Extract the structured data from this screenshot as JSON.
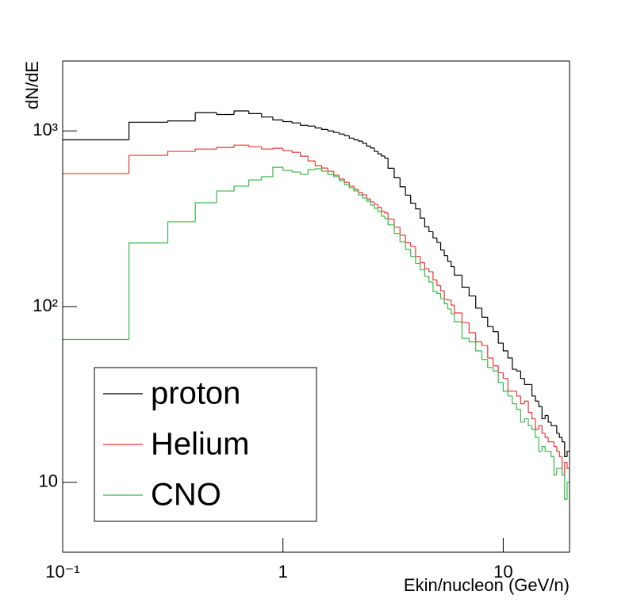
{
  "chart_data": {
    "type": "histogram",
    "xlabel": "Ekin/nucleon (GeV/n)",
    "ylabel": "dN/dE",
    "log_x": true,
    "log_y": true,
    "xlim": [
      0.1,
      20
    ],
    "ylim": [
      4,
      2500
    ],
    "xticks": [
      {
        "value": 0.1,
        "label": "10⁻¹"
      },
      1,
      10
    ],
    "yticks": [
      10,
      {
        "value": 100,
        "label": "10²"
      },
      {
        "value": 1000,
        "label": "10³"
      }
    ],
    "legend_position": "bottom left",
    "bins": [
      0.1,
      0.2,
      0.3,
      0.4,
      0.5,
      0.6,
      0.7,
      0.8,
      0.9,
      1.0,
      1.1,
      1.2,
      1.3,
      1.4,
      1.5,
      1.6,
      1.7,
      1.8,
      1.9,
      2.0,
      2.1,
      2.2,
      2.3,
      2.4,
      2.5,
      2.6,
      2.7,
      2.8,
      2.9,
      3.0,
      3.2,
      3.4,
      3.6,
      3.8,
      4.0,
      4.2,
      4.4,
      4.6,
      4.8,
      5.0,
      5.2,
      5.4,
      5.6,
      5.8,
      6.0,
      6.5,
      7.0,
      7.5,
      8.0,
      8.5,
      9.0,
      9.5,
      10.0,
      10.5,
      11.0,
      11.5,
      12.0,
      12.5,
      13.0,
      13.5,
      14.0,
      14.5,
      15.0,
      15.5,
      16.0,
      16.5,
      17.0,
      17.5,
      18.0,
      18.5,
      19.0,
      19.5,
      20.0
    ],
    "series": [
      {
        "name": "proton",
        "color": "#000000",
        "values": [
          890,
          1120,
          1140,
          1270,
          1240,
          1300,
          1255,
          1200,
          1155,
          1130,
          1110,
          1075,
          1065,
          1040,
          1020,
          1000,
          980,
          960,
          940,
          910,
          890,
          875,
          850,
          820,
          800,
          765,
          740,
          720,
          700,
          613,
          541,
          481,
          431,
          388,
          360,
          319,
          285,
          267,
          246,
          232,
          210,
          195,
          181,
          169,
          151,
          129,
          115,
          98,
          87,
          77,
          72,
          62,
          56,
          51,
          44,
          43,
          39,
          36,
          36,
          31,
          29,
          27,
          23,
          24,
          22,
          21,
          21,
          19,
          18,
          17,
          14,
          15
        ]
      },
      {
        "name": "Helium",
        "color": "#ee3333",
        "values": [
          572,
          726,
          765,
          788,
          805,
          830,
          813,
          788,
          797,
          772,
          756,
          718,
          675,
          634,
          615,
          590,
          560,
          532,
          510,
          485,
          465,
          446,
          432,
          410,
          394,
          382,
          367,
          348,
          341,
          315,
          283,
          255,
          231,
          220,
          193,
          178,
          164,
          158,
          142,
          132,
          123,
          110,
          109,
          102,
          92,
          81,
          71,
          63,
          60,
          51,
          46,
          42,
          39,
          33,
          33,
          31,
          28,
          29,
          25,
          23,
          20,
          21,
          19,
          18,
          17,
          17,
          16,
          15,
          14,
          11,
          13,
          12
        ]
      },
      {
        "name": "CNO",
        "color": "#33bb44",
        "values": [
          65,
          230,
          304,
          390,
          455,
          485,
          526,
          549,
          621,
          596,
          584,
          566,
          602,
          609,
          590,
          566,
          549,
          521,
          495,
          475,
          455,
          432,
          415,
          398,
          378,
          363,
          348,
          327,
          317,
          292,
          261,
          234,
          212,
          193,
          176,
          162,
          149,
          138,
          122,
          119,
          111,
          104,
          97,
          91,
          82,
          66,
          63,
          56,
          50,
          45,
          43,
          37,
          33,
          31,
          28,
          26,
          22,
          23,
          21,
          20,
          18,
          15,
          16,
          15,
          15,
          14,
          11,
          12,
          12,
          11,
          8,
          10
        ]
      }
    ]
  }
}
